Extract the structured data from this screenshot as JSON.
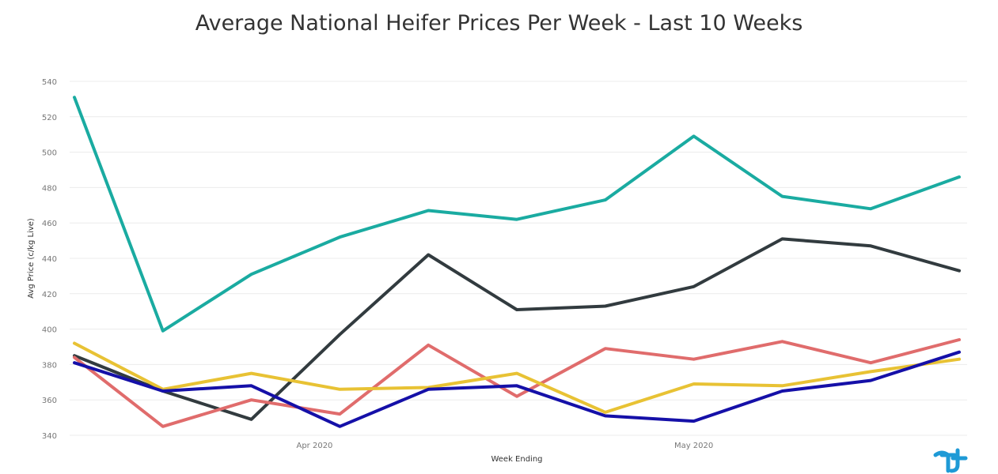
{
  "chart_data": {
    "type": "line",
    "title": "Average National Heifer Prices Per Week - Last 10 Weeks",
    "xlabel": "Week Ending",
    "ylabel": "Avg Price (c/kg Live)",
    "ylim": [
      340,
      540
    ],
    "yticks": [
      340,
      360,
      380,
      400,
      420,
      440,
      460,
      480,
      500,
      520,
      540
    ],
    "x": [
      "2020-03-13",
      "2020-03-20",
      "2020-03-27",
      "2020-04-03",
      "2020-04-10",
      "2020-04-17",
      "2020-04-24",
      "2020-05-01",
      "2020-05-08",
      "2020-05-15",
      "2020-05-22"
    ],
    "xticks": [
      {
        "label": "Apr 2020",
        "date": "2020-04-01"
      },
      {
        "label": "May 2020",
        "date": "2020-05-01"
      }
    ],
    "grid": true,
    "legend_placement": "bottom",
    "series": [
      {
        "color": "#1aaba1",
        "values": [
          531,
          399,
          431,
          452,
          467,
          462,
          473,
          509,
          475,
          468,
          486
        ]
      },
      {
        "color": "#323b3f",
        "values": [
          385,
          365,
          349,
          397,
          442,
          411,
          413,
          424,
          451,
          447,
          433
        ]
      },
      {
        "color": "#e06c6c",
        "values": [
          384,
          345,
          360,
          352,
          391,
          362,
          389,
          383,
          393,
          381,
          394
        ]
      },
      {
        "color": "#e8c234",
        "values": [
          392,
          366,
          375,
          366,
          367,
          375,
          353,
          369,
          368,
          376,
          383
        ]
      },
      {
        "color": "#1510a8",
        "values": [
          381,
          365,
          368,
          345,
          366,
          368,
          351,
          348,
          365,
          371,
          387
        ]
      }
    ]
  },
  "logo": {
    "icon": "tractor-logo-icon",
    "color": "#1e9ad6"
  }
}
